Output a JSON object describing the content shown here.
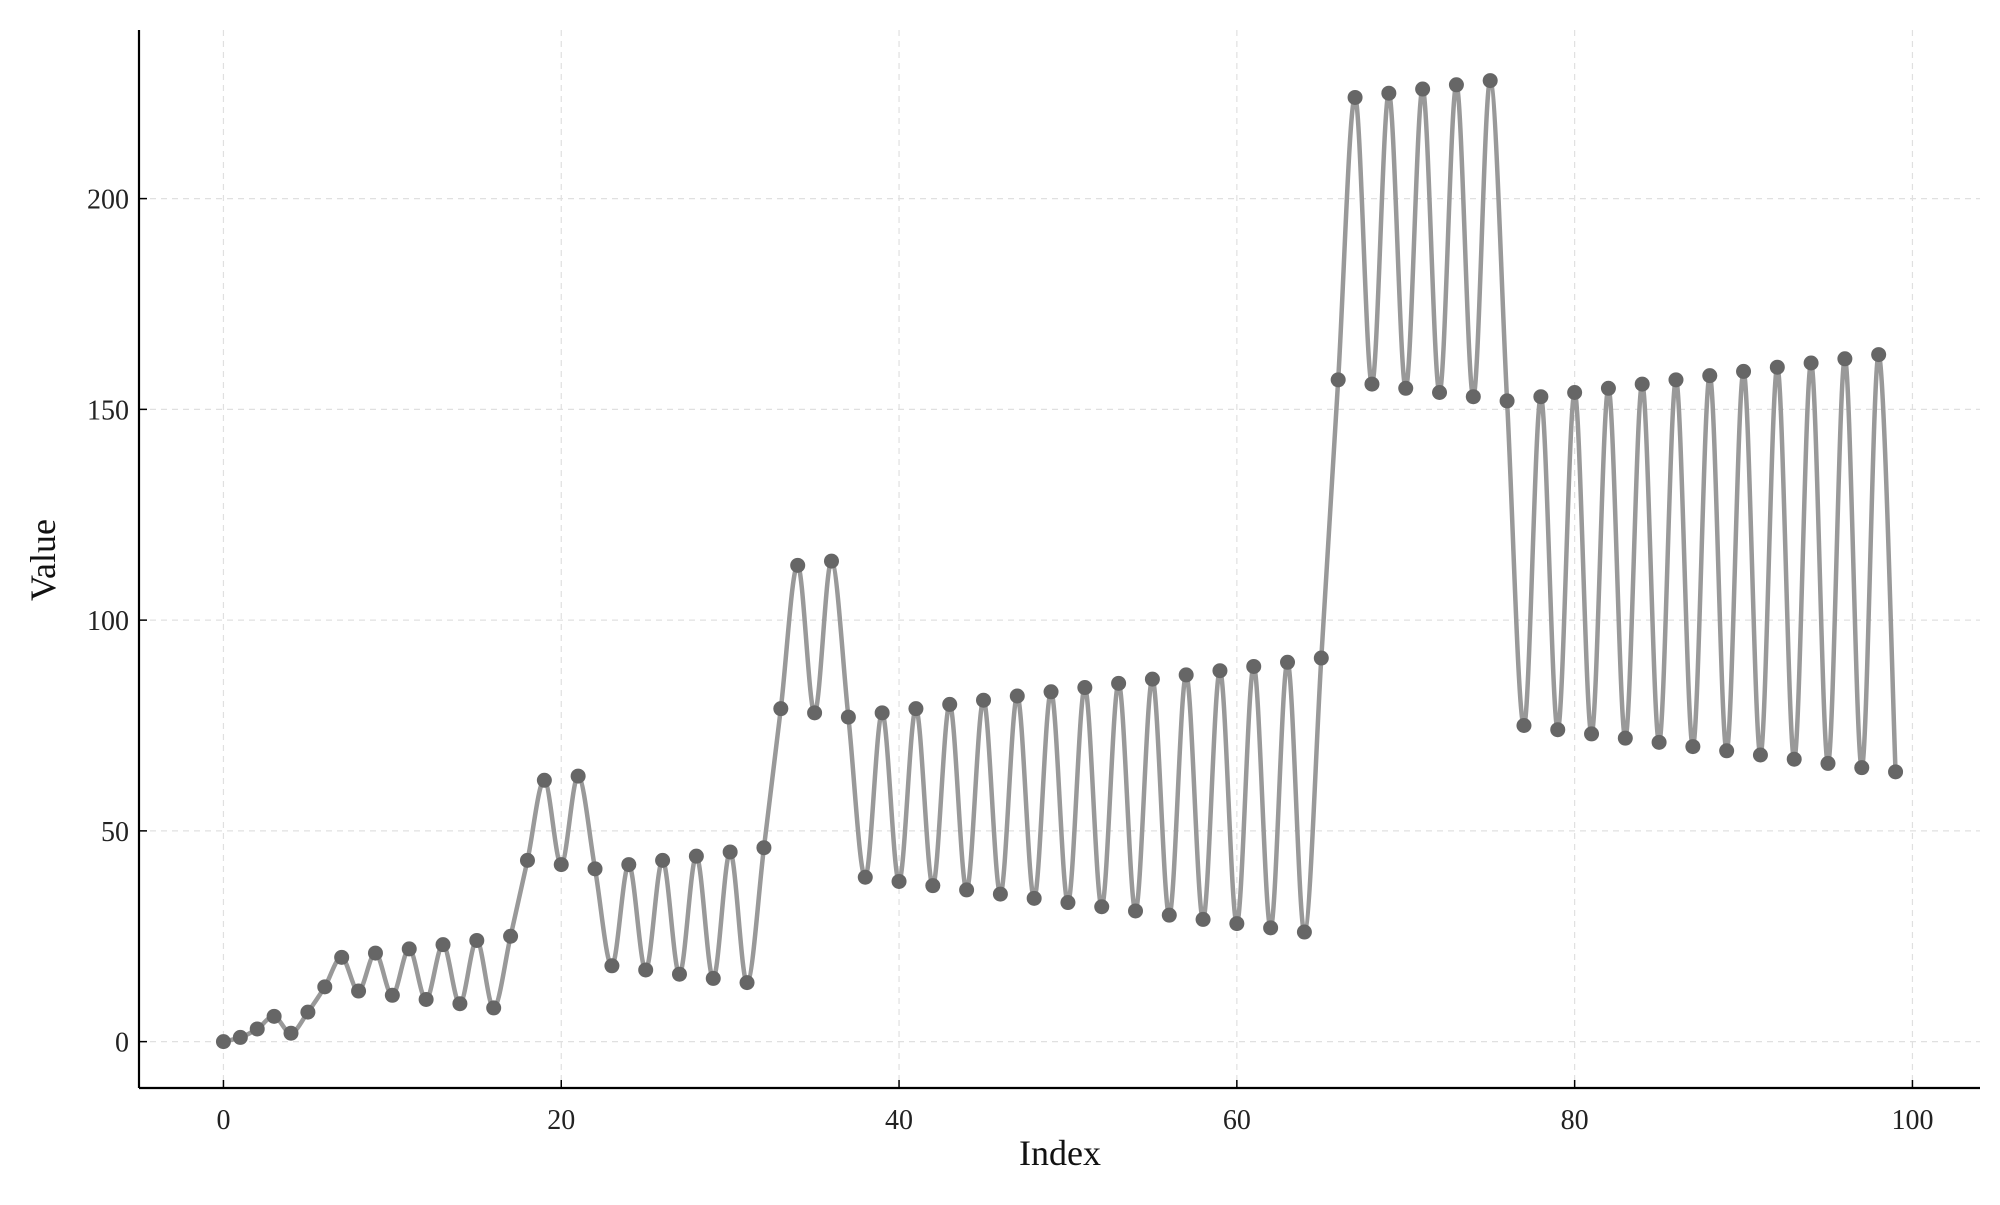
{
  "chart_data": {
    "type": "line",
    "title": "",
    "xlabel": "Index",
    "ylabel": "Value",
    "xlim": [
      -5,
      104
    ],
    "ylim": [
      -11,
      240
    ],
    "xticks": [
      0,
      20,
      40,
      60,
      80,
      100
    ],
    "xtick_labels": [
      "0",
      "20",
      "40",
      "60",
      "80",
      "100"
    ],
    "yticks": [
      0,
      50,
      100,
      150,
      200
    ],
    "ytick_labels": [
      "0",
      "50",
      "100",
      "150",
      "200"
    ],
    "grid": true,
    "legend": "none",
    "line_smooth": true,
    "colors": {
      "line": "#999999",
      "marker": "#666666",
      "axis": "#000000",
      "grid": "#e0e0e0"
    },
    "series": [
      {
        "x": [
          0,
          1,
          2,
          3,
          4,
          5,
          6,
          7,
          8,
          9,
          10,
          11,
          12,
          13,
          14,
          15,
          16,
          17,
          18,
          19,
          20,
          21,
          22,
          23,
          24,
          25,
          26,
          27,
          28,
          29,
          30,
          31,
          32,
          33,
          34,
          35,
          36,
          37,
          38,
          39,
          40,
          41,
          42,
          43,
          44,
          45,
          46,
          47,
          48,
          49,
          50,
          51,
          52,
          53,
          54,
          55,
          56,
          57,
          58,
          59,
          60,
          61,
          62,
          63,
          64,
          65,
          66,
          67,
          68,
          69,
          70,
          71,
          72,
          73,
          74,
          75,
          76,
          77,
          78,
          79,
          80,
          81,
          82,
          83,
          84,
          85,
          86,
          87,
          88,
          89,
          90,
          91,
          92,
          93,
          94,
          95,
          96,
          97,
          98,
          99
        ],
        "values": [
          0,
          1,
          3,
          6,
          2,
          7,
          13,
          20,
          12,
          21,
          11,
          22,
          10,
          23,
          9,
          24,
          8,
          25,
          43,
          62,
          42,
          63,
          41,
          18,
          42,
          17,
          43,
          16,
          44,
          15,
          45,
          14,
          46,
          79,
          113,
          78,
          114,
          77,
          39,
          78,
          38,
          79,
          37,
          80,
          36,
          81,
          35,
          82,
          34,
          83,
          33,
          84,
          32,
          85,
          31,
          86,
          30,
          87,
          29,
          88,
          28,
          89,
          27,
          90,
          26,
          91,
          157,
          224,
          156,
          225,
          155,
          226,
          154,
          227,
          153,
          228,
          152,
          75,
          153,
          74,
          154,
          73,
          155,
          72,
          156,
          71,
          157,
          70,
          158,
          69,
          159,
          68,
          160,
          67,
          161,
          66,
          162,
          65,
          163,
          64
        ]
      }
    ]
  }
}
